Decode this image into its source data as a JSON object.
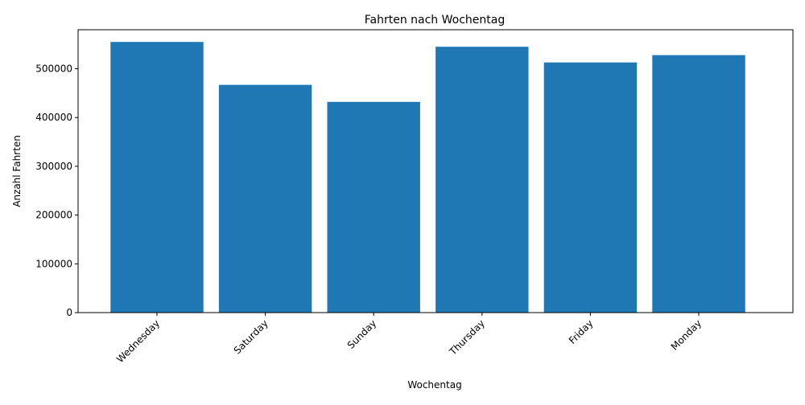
{
  "chart_data": {
    "type": "bar",
    "title": "Fahrten nach Wochentag",
    "xlabel": "Wochentag",
    "ylabel": "Anzahl Fahrten",
    "categories": [
      "Wednesday",
      "Saturday",
      "Sunday",
      "Thursday",
      "Friday",
      "Monday"
    ],
    "values": [
      555000,
      467000,
      432000,
      545000,
      513000,
      528000
    ],
    "ylim": [
      0,
      580000
    ],
    "yticks": [
      {
        "value": 0,
        "label": "0"
      },
      {
        "value": 100000,
        "label": "100000"
      },
      {
        "value": 200000,
        "label": "200000"
      },
      {
        "value": 300000,
        "label": "300000"
      },
      {
        "value": 400000,
        "label": "400000"
      },
      {
        "value": 500000,
        "label": "500000"
      }
    ],
    "bar_color": "#1f77b4",
    "grid": false,
    "legend": "none",
    "xtick_rotation_deg": 45
  }
}
